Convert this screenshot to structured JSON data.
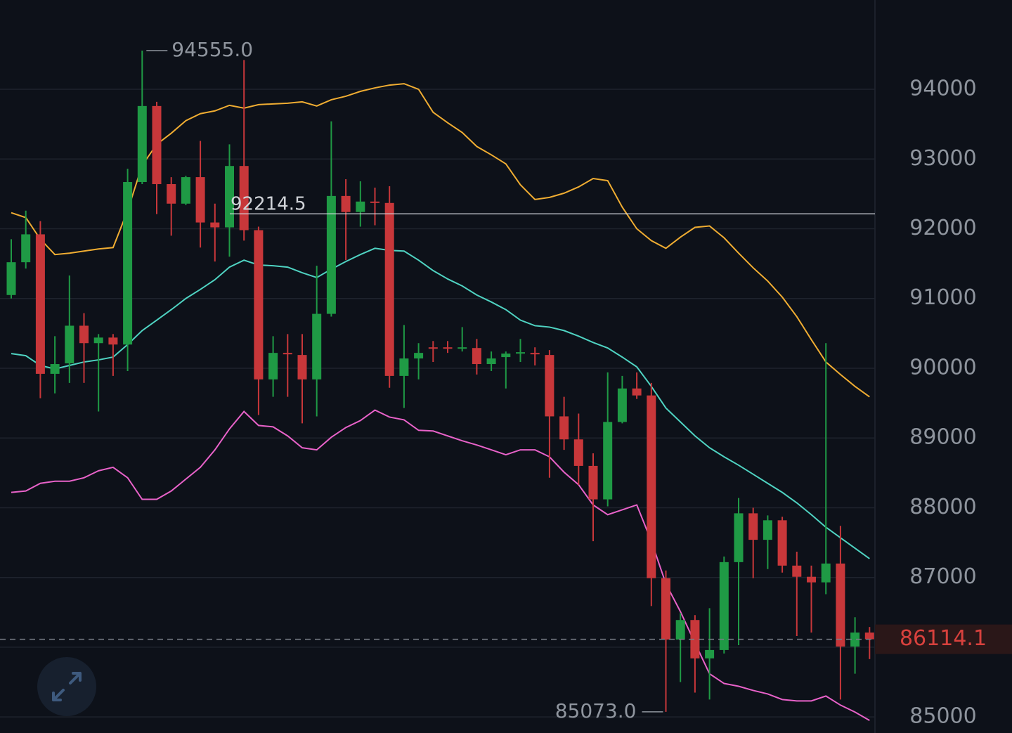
{
  "chart_data": {
    "type": "candlestick",
    "ylim": [
      84770,
      95280
    ],
    "yticks": [
      85000,
      86000,
      87000,
      88000,
      89000,
      90000,
      91000,
      92000,
      93000,
      94000
    ],
    "grid": true,
    "up_color": "#1f9a45",
    "down_color": "#c8373a",
    "open": [
      91050,
      91520,
      91920,
      89920,
      90070,
      90610,
      90360,
      90440,
      90340,
      92670,
      93760,
      92640,
      92360,
      92740,
      92090,
      92020,
      92900,
      91980,
      89840,
      90220,
      90190,
      89840,
      90780,
      92470,
      92240,
      92390,
      92370,
      89890,
      90140,
      90300,
      90300,
      90280,
      90290,
      90060,
      90160,
      90210,
      90220,
      90190,
      89310,
      88980,
      88600,
      88120,
      89230,
      89710,
      89610,
      86990,
      86110,
      86390,
      85840,
      85960,
      87220,
      87920,
      87540,
      87820,
      87170,
      87010,
      86930,
      87200,
      86010,
      86210
    ],
    "high": [
      91850,
      92260,
      92110,
      90460,
      91330,
      90790,
      90490,
      90490,
      92860,
      94555,
      93820,
      92740,
      92760,
      93260,
      92360,
      93210,
      94420,
      92030,
      90460,
      90490,
      90490,
      91470,
      93540,
      92710,
      92680,
      92590,
      92610,
      90620,
      90360,
      90390,
      90390,
      90590,
      90420,
      90240,
      90240,
      90420,
      90300,
      90260,
      89590,
      89350,
      88780,
      89940,
      89890,
      89940,
      89790,
      87100,
      86490,
      86460,
      86560,
      87300,
      88140,
      88000,
      87890,
      87870,
      87370,
      87170,
      90360,
      87740,
      86430,
      86290
    ],
    "low": [
      91000,
      91430,
      89570,
      89640,
      89790,
      89790,
      89380,
      89890,
      89960,
      92640,
      92210,
      91900,
      92340,
      91730,
      91530,
      91600,
      91830,
      89330,
      89590,
      89590,
      89210,
      89310,
      90740,
      91550,
      92030,
      92050,
      89720,
      89430,
      89840,
      90090,
      90220,
      90240,
      89910,
      89960,
      89710,
      90090,
      90040,
      88430,
      88830,
      88330,
      87520,
      88020,
      89210,
      89560,
      86590,
      85073,
      85500,
      85350,
      85250,
      85910,
      86030,
      86990,
      87120,
      87070,
      86160,
      86210,
      86760,
      85250,
      85620,
      85830
    ],
    "close": [
      91520,
      91920,
      89920,
      90060,
      90610,
      90360,
      90440,
      90340,
      92670,
      93760,
      92640,
      92360,
      92740,
      92090,
      92020,
      92900,
      91980,
      89840,
      90220,
      90210,
      89840,
      90780,
      92470,
      92240,
      92390,
      92370,
      89890,
      90140,
      90220,
      90280,
      90280,
      90300,
      90060,
      90140,
      90210,
      90230,
      90210,
      89310,
      88980,
      88600,
      88120,
      89230,
      89710,
      89610,
      86990,
      86110,
      86390,
      85840,
      85960,
      87220,
      87920,
      87540,
      87820,
      87170,
      87010,
      86930,
      87200,
      86010,
      86210,
      86114.1
    ],
    "bands": [
      {
        "color": "#f0ad32",
        "values": [
          92230,
          92160,
          91850,
          91630,
          91650,
          91680,
          91710,
          91730,
          92260,
          92910,
          93210,
          93370,
          93550,
          93650,
          93690,
          93770,
          93730,
          93780,
          93790,
          93800,
          93820,
          93760,
          93850,
          93900,
          93970,
          94020,
          94060,
          94080,
          94000,
          93670,
          93520,
          93380,
          93180,
          93060,
          92930,
          92630,
          92420,
          92450,
          92510,
          92600,
          92720,
          92690,
          92310,
          92000,
          91830,
          91720,
          91880,
          92020,
          92040,
          91870,
          91650,
          91440,
          91250,
          91020,
          90740,
          90410,
          90090,
          89910,
          89740,
          89590
        ]
      },
      {
        "color": "#4fd3c2",
        "values": [
          90210,
          90180,
          90040,
          89990,
          90040,
          90090,
          90120,
          90160,
          90340,
          90540,
          90690,
          90840,
          91000,
          91130,
          91270,
          91450,
          91550,
          91480,
          91470,
          91450,
          91370,
          91300,
          91420,
          91530,
          91630,
          91720,
          91690,
          91680,
          91550,
          91400,
          91280,
          91180,
          91050,
          90950,
          90840,
          90690,
          90610,
          90590,
          90540,
          90460,
          90370,
          90290,
          90160,
          90020,
          89740,
          89430,
          89230,
          89030,
          88860,
          88730,
          88610,
          88480,
          88350,
          88220,
          88070,
          87900,
          87720,
          87570,
          87420,
          87270
        ]
      },
      {
        "color": "#e862c9",
        "values": [
          88220,
          88240,
          88350,
          88380,
          88380,
          88430,
          88530,
          88580,
          88430,
          88120,
          88120,
          88240,
          88410,
          88580,
          88830,
          89130,
          89380,
          89180,
          89160,
          89030,
          88860,
          88830,
          89010,
          89150,
          89250,
          89400,
          89300,
          89260,
          89110,
          89100,
          89030,
          88960,
          88900,
          88830,
          88760,
          88830,
          88830,
          88730,
          88510,
          88330,
          88040,
          87900,
          87970,
          88040,
          87520,
          86910,
          86510,
          86060,
          85620,
          85480,
          85440,
          85380,
          85330,
          85250,
          85230,
          85230,
          85300,
          85170,
          85070,
          84950
        ]
      }
    ],
    "high_label": {
      "value": 94555,
      "label": "94555.0"
    },
    "low_label": {
      "value": 85073,
      "label": "85073.0"
    },
    "crosshair": {
      "value": 92214.5,
      "label": "92214.5"
    },
    "last_price": 86114.1
  }
}
